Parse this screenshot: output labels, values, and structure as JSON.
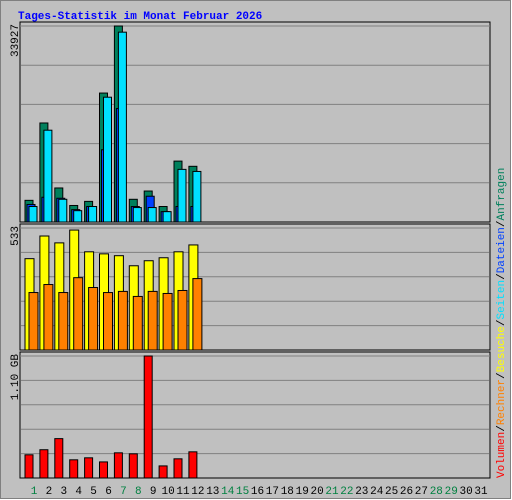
{
  "legend_separator": "/",
  "chart_data": [
    {
      "type": "bar",
      "title": "Tages-Statistik im Monat Februar 2026",
      "ylim": [
        0,
        33927
      ],
      "yticks": [
        33927
      ],
      "series": [
        {
          "name": "Anfragen",
          "color": "#00805c",
          "values": [
            3750,
            17140,
            5890,
            2860,
            3570,
            22320,
            33927,
            3930,
            5360,
            2680,
            10540,
            9640,
            null,
            null,
            null,
            null,
            null,
            null,
            null,
            null,
            null,
            null,
            null,
            null,
            null,
            null,
            null,
            null,
            null,
            null,
            null
          ]
        },
        {
          "name": "Dateien",
          "color": "#0040ff",
          "values": [
            3035,
            4285,
            4110,
            2140,
            2680,
            12500,
            19640,
            2680,
            4460,
            1790,
            2680,
            2680,
            null,
            null,
            null,
            null,
            null,
            null,
            null,
            null,
            null,
            null,
            null,
            null,
            null,
            null,
            null,
            null,
            null,
            null,
            null
          ]
        },
        {
          "name": "Seiten",
          "color": "#00e0ff",
          "values": [
            2680,
            15890,
            3930,
            1960,
            2680,
            21600,
            32860,
            2500,
            2500,
            1790,
            9110,
            8750,
            null,
            null,
            null,
            null,
            null,
            null,
            null,
            null,
            null,
            null,
            null,
            null,
            null,
            null,
            null,
            null,
            null,
            null,
            null
          ]
        }
      ]
    },
    {
      "type": "bar",
      "ylim": [
        0,
        533
      ],
      "yticks": [
        533
      ],
      "series": [
        {
          "name": "Besuche",
          "color": "#ffff00",
          "values": [
            399,
            498,
            468,
            524,
            429,
            420,
            412,
            368,
            390,
            403,
            429,
            459,
            null,
            null,
            null,
            null,
            null,
            null,
            null,
            null,
            null,
            null,
            null,
            null,
            null,
            null,
            null,
            null,
            null,
            null,
            null
          ]
        },
        {
          "name": "Rechner",
          "color": "#ff8000",
          "values": [
            251,
            286,
            251,
            316,
            273,
            251,
            256,
            234,
            256,
            247,
            260,
            312,
            null,
            null,
            null,
            null,
            null,
            null,
            null,
            null,
            null,
            null,
            null,
            null,
            null,
            null,
            null,
            null,
            null,
            null,
            null
          ]
        }
      ]
    },
    {
      "type": "bar",
      "ylim": [
        0,
        1.1
      ],
      "yticks": [
        {
          "value": 1.1,
          "label": "1.10 GB"
        }
      ],
      "series": [
        {
          "name": "Volumen",
          "color": "#ff0000",
          "values": [
            0.209,
            0.255,
            0.355,
            0.164,
            0.182,
            0.145,
            0.227,
            0.218,
            1.1,
            0.109,
            0.173,
            0.236,
            null,
            null,
            null,
            null,
            null,
            null,
            null,
            null,
            null,
            null,
            null,
            null,
            null,
            null,
            null,
            null,
            null,
            null,
            null
          ]
        }
      ],
      "categories": [
        "1",
        "2",
        "3",
        "4",
        "5",
        "6",
        "7",
        "8",
        "9",
        "10",
        "11",
        "12",
        "13",
        "14",
        "15",
        "16",
        "17",
        "18",
        "19",
        "20",
        "21",
        "22",
        "23",
        "24",
        "25",
        "26",
        "27",
        "28",
        "29",
        "30",
        "31"
      ],
      "category_colors": [
        "#008040",
        "#000000",
        "#000000",
        "#000000",
        "#000000",
        "#000000",
        "#008040",
        "#008040",
        "#000000",
        "#000000",
        "#000000",
        "#000000",
        "#000000",
        "#008040",
        "#008040",
        "#000000",
        "#000000",
        "#000000",
        "#000000",
        "#000000",
        "#008040",
        "#008040",
        "#000000",
        "#000000",
        "#000000",
        "#000000",
        "#000000",
        "#008040",
        "#008040",
        "#000000",
        "#000000"
      ]
    }
  ]
}
